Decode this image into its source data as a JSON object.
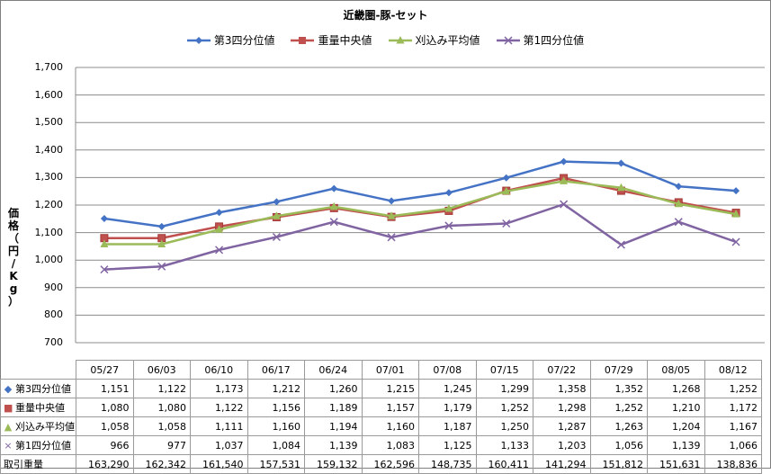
{
  "chart_data": {
    "type": "line",
    "title": "近畿圏-豚-セット",
    "ylabel": "価格（円/Kg）",
    "ylim": [
      700,
      1700
    ],
    "yticks": [
      "700",
      "800",
      "900",
      "1,000",
      "1,100",
      "1,200",
      "1,300",
      "1,400",
      "1,500",
      "1,600",
      "1,700"
    ],
    "grid": true,
    "legend_position": "top",
    "categories": [
      "05/27",
      "06/03",
      "06/10",
      "06/17",
      "06/24",
      "07/01",
      "07/08",
      "07/15",
      "07/22",
      "07/29",
      "08/05",
      "08/12"
    ],
    "series": [
      {
        "name": "第3四分位値",
        "color": "#4472C4",
        "marker": "diamond",
        "glyph": "◆",
        "values": [
          1151,
          1122,
          1173,
          1212,
          1260,
          1215,
          1245,
          1299,
          1358,
          1352,
          1268,
          1252
        ],
        "labels": [
          "1,151",
          "1,122",
          "1,173",
          "1,212",
          "1,260",
          "1,215",
          "1,245",
          "1,299",
          "1,358",
          "1,352",
          "1,268",
          "1,252"
        ]
      },
      {
        "name": "重量中央値",
        "color": "#C0504D",
        "marker": "square",
        "glyph": "■",
        "values": [
          1080,
          1080,
          1122,
          1156,
          1189,
          1157,
          1179,
          1252,
          1298,
          1252,
          1210,
          1172
        ],
        "labels": [
          "1,080",
          "1,080",
          "1,122",
          "1,156",
          "1,189",
          "1,157",
          "1,179",
          "1,252",
          "1,298",
          "1,252",
          "1,210",
          "1,172"
        ]
      },
      {
        "name": "刈込み平均値",
        "color": "#9BBB59",
        "marker": "triangle",
        "glyph": "▲",
        "values": [
          1058,
          1058,
          1111,
          1160,
          1194,
          1160,
          1187,
          1250,
          1287,
          1263,
          1204,
          1167
        ],
        "labels": [
          "1,058",
          "1,058",
          "1,111",
          "1,160",
          "1,194",
          "1,160",
          "1,187",
          "1,250",
          "1,287",
          "1,263",
          "1,204",
          "1,167"
        ]
      },
      {
        "name": "第1四分位値",
        "color": "#8064A2",
        "marker": "x",
        "glyph": "×",
        "values": [
          966,
          977,
          1037,
          1084,
          1139,
          1083,
          1125,
          1133,
          1203,
          1056,
          1139,
          1066
        ],
        "labels": [
          "966",
          "977",
          "1,037",
          "1,084",
          "1,139",
          "1,083",
          "1,125",
          "1,133",
          "1,203",
          "1,056",
          "1,139",
          "1,066"
        ]
      }
    ],
    "volume": {
      "name": "取引重量",
      "values": [
        163290,
        162342,
        161540,
        157531,
        159132,
        162596,
        148735,
        160411,
        141294,
        151812,
        151631,
        138836
      ],
      "labels": [
        "163,290",
        "162,342",
        "161,540",
        "157,531",
        "159,132",
        "162,596",
        "148,735",
        "160,411",
        "141,294",
        "151,812",
        "151,631",
        "138,836"
      ]
    }
  }
}
